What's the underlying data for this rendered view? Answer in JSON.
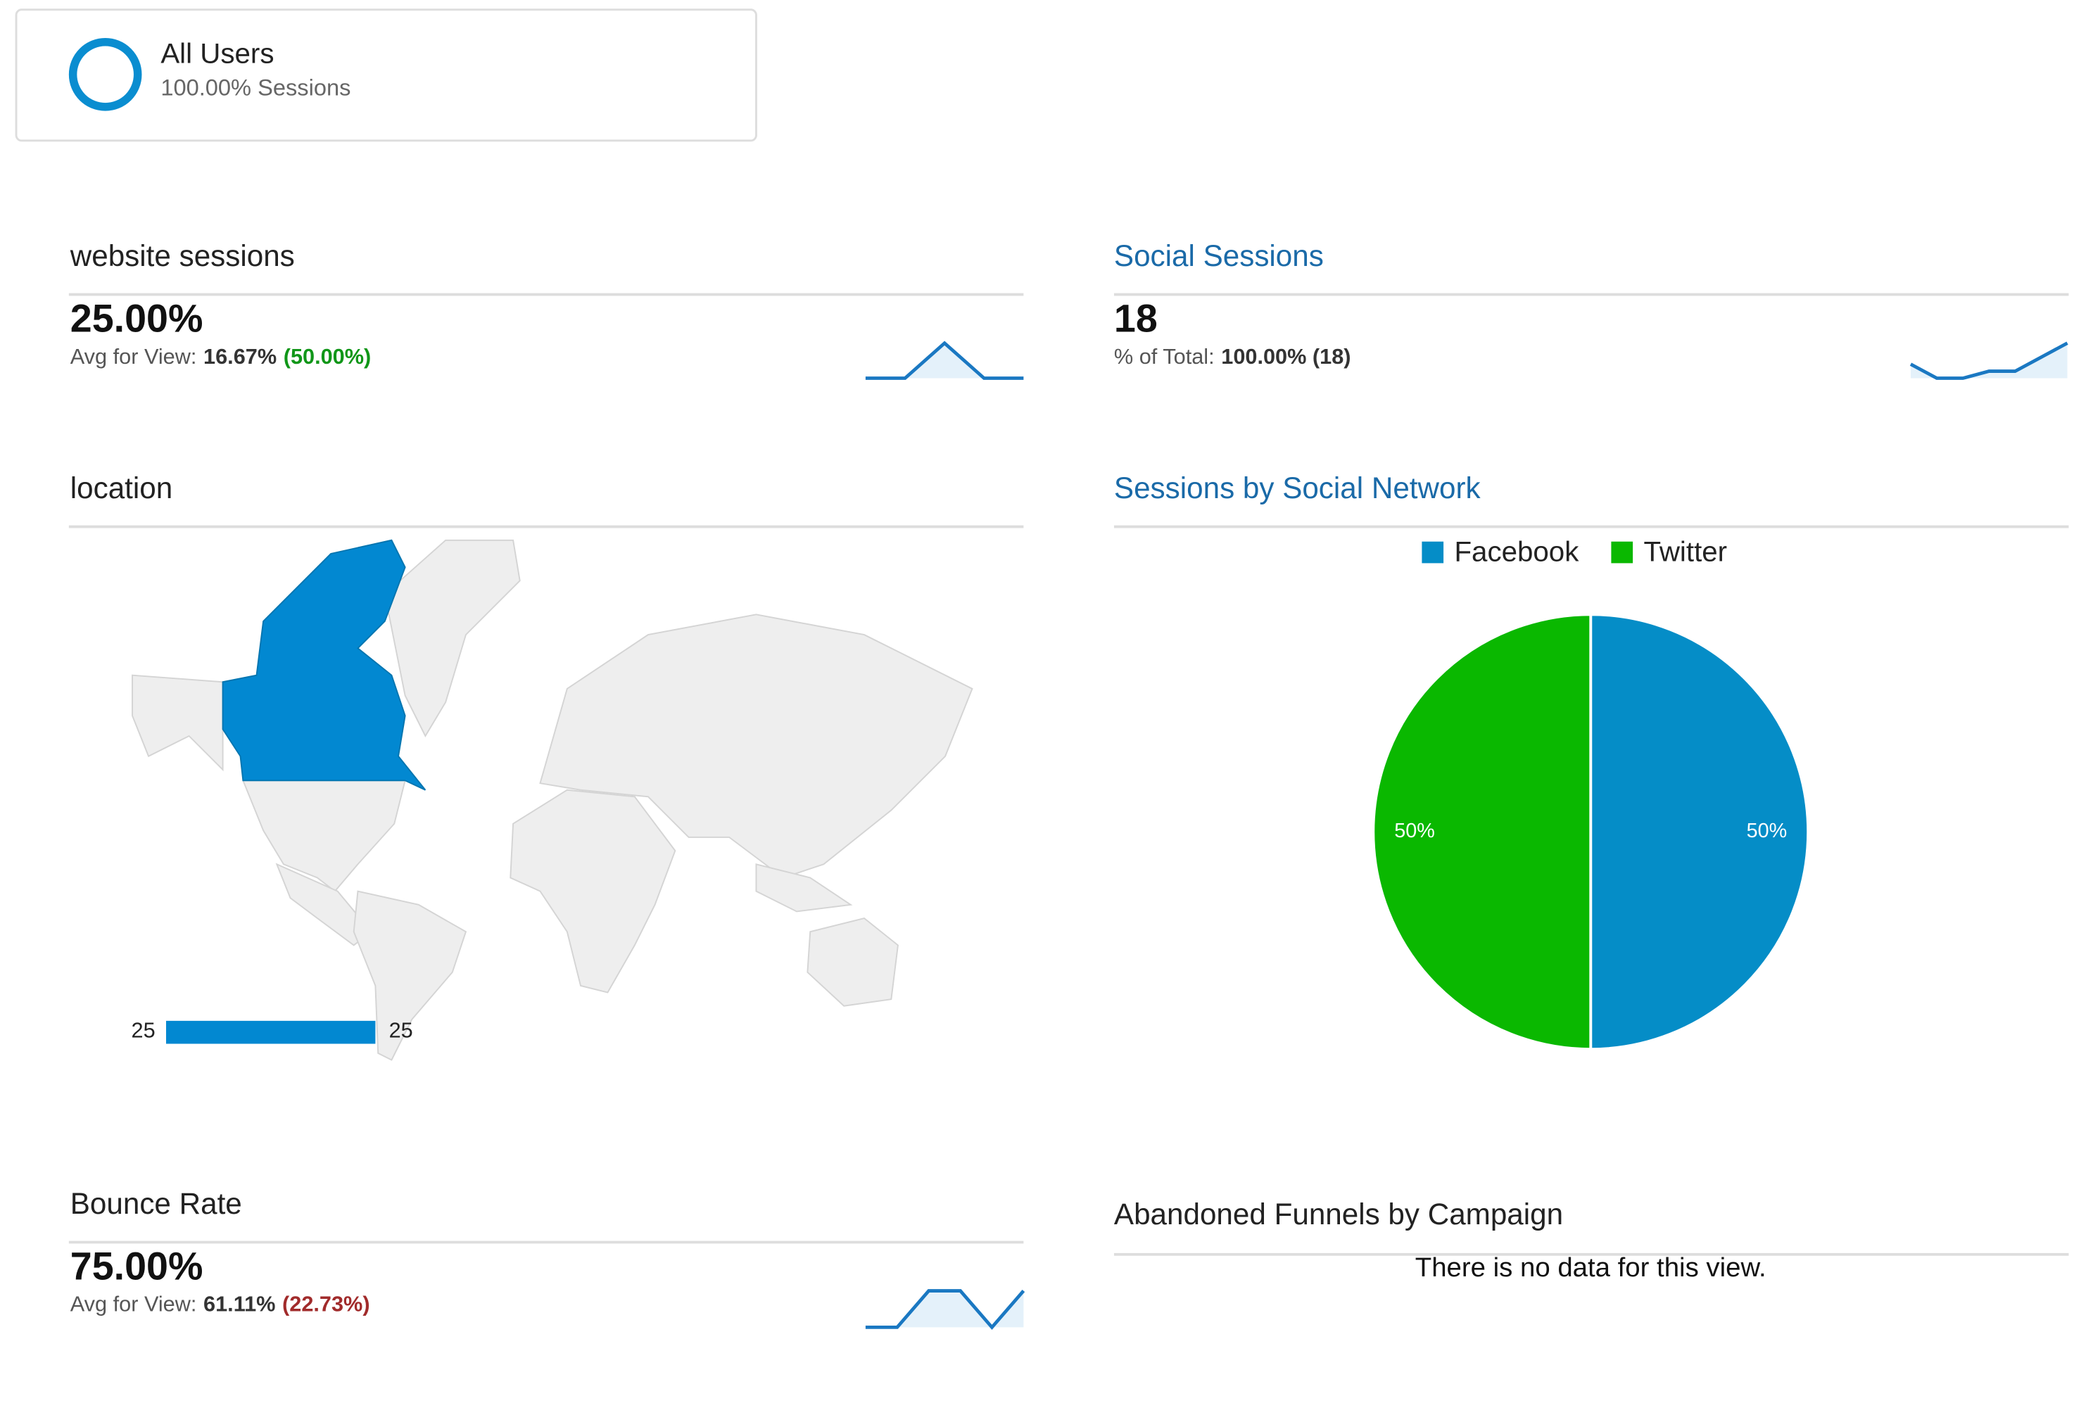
{
  "segment": {
    "name": "All Users",
    "detail": "100.00% Sessions"
  },
  "website_sessions": {
    "title": "website sessions",
    "value": "25.00%",
    "comparison_label": "Avg for View:",
    "comparison_value": "16.67%",
    "comparison_change": "(50.00%)",
    "change_color": "#109618",
    "sparkline": [
      0,
      0,
      1,
      0,
      0
    ]
  },
  "social_sessions": {
    "title": "Social Sessions",
    "value": "18",
    "comparison_label": "% of Total:",
    "comparison_value": "100.00% (18)",
    "sparkline": [
      3,
      1,
      1,
      2,
      2,
      4,
      6
    ]
  },
  "location": {
    "title": "location",
    "legend_min": 25,
    "legend_max": 25,
    "color": "#0288d1"
  },
  "social_network": {
    "title": "Sessions by Social Network",
    "chart": {
      "type": "pie",
      "series": [
        {
          "name": "Facebook",
          "color": "#058dc7",
          "value": 50,
          "value_label": "50%"
        },
        {
          "name": "Twitter",
          "color": "#0ab800",
          "value": 50,
          "value_label": "50%"
        }
      ]
    }
  },
  "bounce_rate": {
    "title": "Bounce Rate",
    "value": "75.00%",
    "comparison_label": "Avg for View:",
    "comparison_value": "61.11%",
    "comparison_change": "(22.73%)",
    "change_color": "#a12b2b",
    "sparkline": [
      0,
      0,
      100,
      100,
      0,
      100
    ]
  },
  "abandoned_funnels": {
    "title": "Abandoned Funnels by Campaign",
    "message": "There is no data for this view."
  }
}
